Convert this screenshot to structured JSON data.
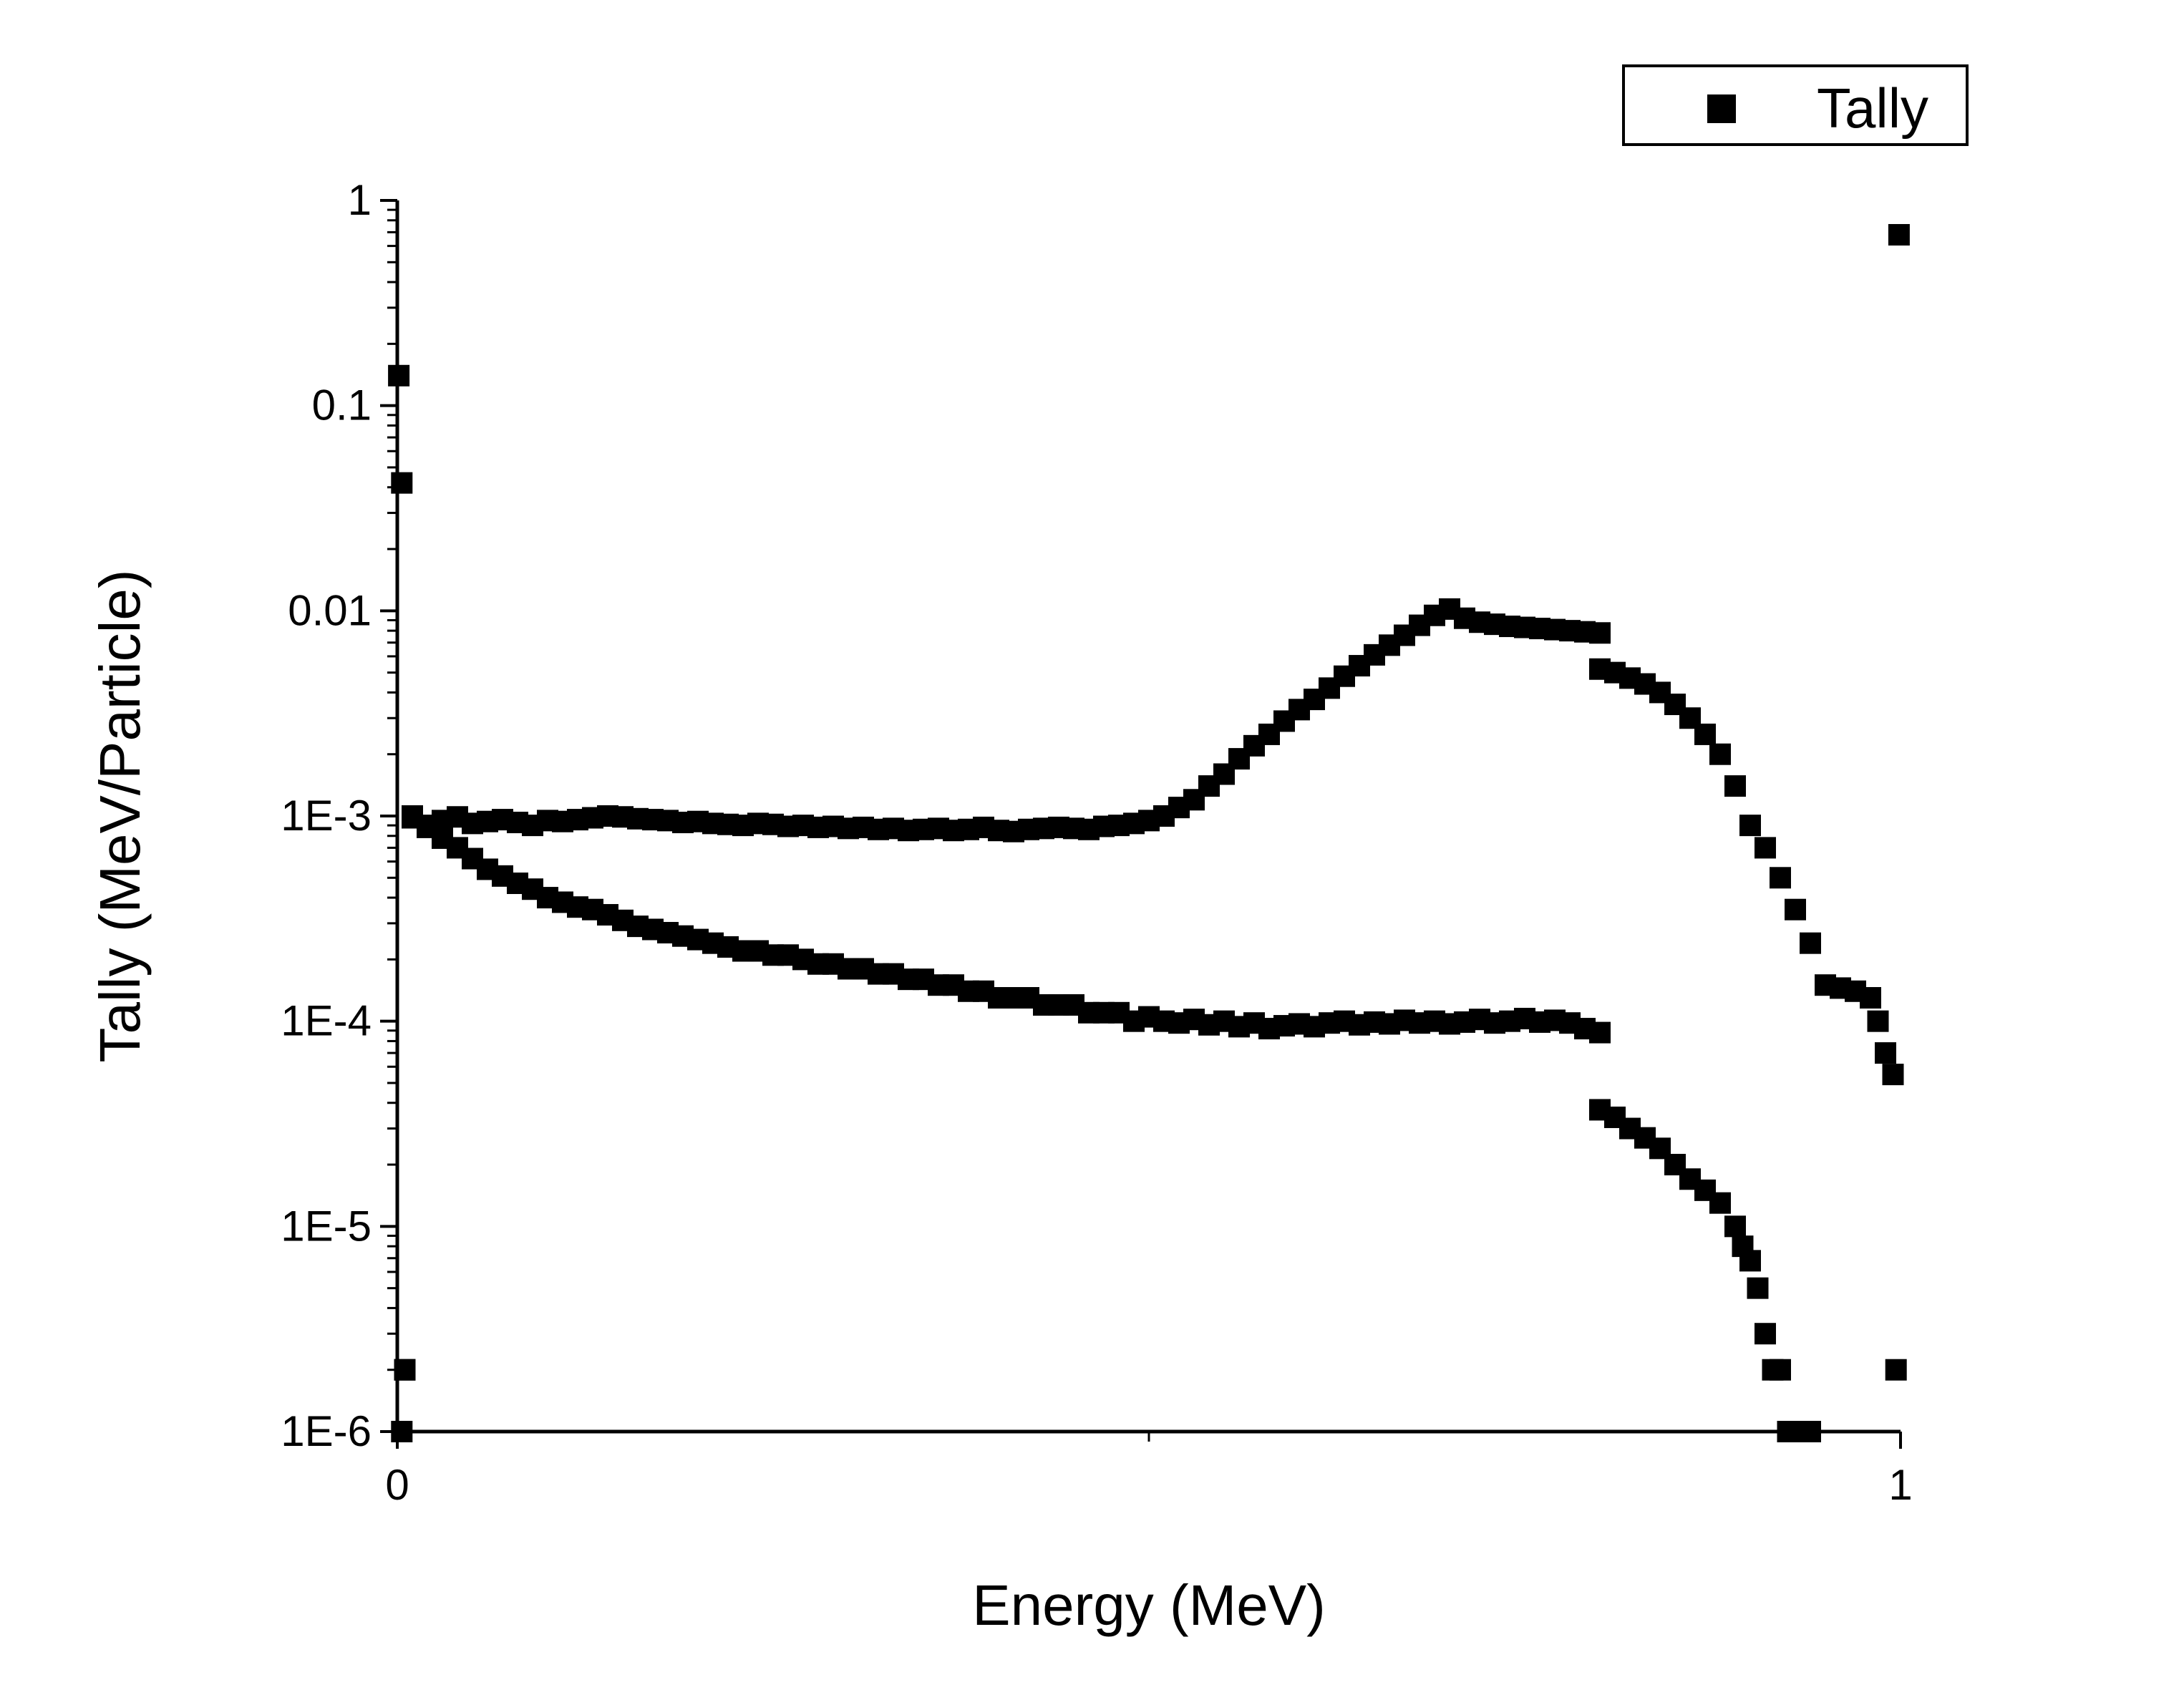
{
  "chart_data": {
    "type": "scatter",
    "title": "",
    "xlabel": "Energy (MeV)",
    "ylabel": "Tally (MeV/Particle)",
    "xlim": [
      0,
      1
    ],
    "ylim": [
      1e-06,
      1
    ],
    "yscale": "log",
    "grid": false,
    "legend": "top-right",
    "marker_color": "#000000",
    "x_ticks": [
      {
        "value": 0,
        "label": "0"
      },
      {
        "value": 1,
        "label": "1"
      }
    ],
    "y_ticks": [
      {
        "value": 1,
        "label": "1"
      },
      {
        "value": 0.1,
        "label": "0.1"
      },
      {
        "value": 0.01,
        "label": "0.01"
      },
      {
        "value": 0.001,
        "label": "1E-3"
      },
      {
        "value": 0.0001,
        "label": "1E-4"
      },
      {
        "value": 1e-05,
        "label": "1E-5"
      },
      {
        "value": 1e-06,
        "label": "1E-6"
      }
    ],
    "series": [
      {
        "name": "Tally",
        "marker": "square",
        "x": [
          0.001,
          0.003,
          0.005,
          0.01,
          0.02,
          0.03,
          0.04,
          0.05,
          0.06,
          0.07,
          0.08,
          0.09,
          0.1,
          0.11,
          0.12,
          0.13,
          0.14,
          0.15,
          0.16,
          0.17,
          0.18,
          0.19,
          0.2,
          0.21,
          0.22,
          0.23,
          0.24,
          0.25,
          0.26,
          0.27,
          0.28,
          0.29,
          0.3,
          0.31,
          0.32,
          0.33,
          0.34,
          0.35,
          0.36,
          0.37,
          0.38,
          0.39,
          0.4,
          0.41,
          0.42,
          0.43,
          0.44,
          0.45,
          0.46,
          0.47,
          0.48,
          0.49,
          0.5,
          0.51,
          0.52,
          0.53,
          0.54,
          0.55,
          0.56,
          0.57,
          0.58,
          0.59,
          0.6,
          0.61,
          0.62,
          0.63,
          0.64,
          0.65,
          0.66,
          0.67,
          0.68,
          0.69,
          0.7,
          0.71,
          0.72,
          0.73,
          0.74,
          0.75,
          0.76,
          0.77,
          0.78,
          0.79,
          0.8,
          0.01,
          0.02,
          0.03,
          0.04,
          0.05,
          0.06,
          0.07,
          0.08,
          0.09,
          0.1,
          0.11,
          0.12,
          0.13,
          0.14,
          0.15,
          0.16,
          0.17,
          0.18,
          0.19,
          0.2,
          0.21,
          0.22,
          0.23,
          0.24,
          0.25,
          0.26,
          0.27,
          0.28,
          0.29,
          0.3,
          0.31,
          0.32,
          0.33,
          0.34,
          0.35,
          0.36,
          0.37,
          0.38,
          0.39,
          0.4,
          0.41,
          0.42,
          0.43,
          0.44,
          0.45,
          0.46,
          0.47,
          0.48,
          0.49,
          0.5,
          0.51,
          0.52,
          0.53,
          0.54,
          0.55,
          0.56,
          0.57,
          0.58,
          0.59,
          0.6,
          0.61,
          0.62,
          0.63,
          0.64,
          0.65,
          0.66,
          0.67,
          0.68,
          0.69,
          0.7,
          0.71,
          0.72,
          0.73,
          0.74,
          0.75,
          0.76,
          0.77,
          0.78,
          0.79,
          0.8,
          0.8,
          0.81,
          0.82,
          0.83,
          0.84,
          0.85,
          0.86,
          0.87,
          0.88,
          0.89,
          0.9,
          0.91,
          0.92,
          0.93,
          0.94,
          0.95,
          0.96,
          0.97,
          0.98,
          0.985,
          0.99,
          0.995,
          0.8,
          0.81,
          0.82,
          0.83,
          0.84,
          0.85,
          0.86,
          0.87,
          0.88,
          0.89,
          0.895,
          0.9,
          0.905,
          0.91,
          0.915,
          0.92,
          0.925,
          0.93,
          0.935,
          0.94,
          0.003,
          0.005,
          0.997,
          0.999
        ],
        "y": [
          0.14,
          0.042,
          2e-06,
          0.00098,
          0.0009,
          0.00095,
          0.00099,
          0.00092,
          0.00094,
          0.00096,
          0.00093,
          0.0009,
          0.00095,
          0.00094,
          0.00096,
          0.00098,
          0.001,
          0.00099,
          0.00097,
          0.00096,
          0.00095,
          0.00093,
          0.00094,
          0.00092,
          0.00091,
          0.0009,
          0.00092,
          0.00091,
          0.00089,
          0.0009,
          0.00088,
          0.00089,
          0.00087,
          0.00088,
          0.00086,
          0.00087,
          0.00085,
          0.00086,
          0.00087,
          0.00085,
          0.00086,
          0.00088,
          0.00085,
          0.00084,
          0.00086,
          0.00087,
          0.00088,
          0.00087,
          0.00086,
          0.00089,
          0.0009,
          0.00092,
          0.00095,
          0.001,
          0.0011,
          0.0012,
          0.0014,
          0.0016,
          0.0019,
          0.0022,
          0.0025,
          0.0029,
          0.0033,
          0.0037,
          0.0042,
          0.0048,
          0.0054,
          0.0061,
          0.0068,
          0.0076,
          0.0085,
          0.0095,
          0.0102,
          0.0092,
          0.0088,
          0.0086,
          0.0084,
          0.0083,
          0.0082,
          0.0081,
          0.008,
          0.0079,
          0.0078,
          0.001,
          0.00088,
          0.00078,
          0.0007,
          0.00062,
          0.00055,
          0.00051,
          0.00047,
          0.00044,
          0.0004,
          0.00038,
          0.00036,
          0.00035,
          0.00033,
          0.00031,
          0.00029,
          0.00028,
          0.00027,
          0.00026,
          0.00025,
          0.00024,
          0.00023,
          0.00022,
          0.00022,
          0.00021,
          0.00021,
          0.0002,
          0.00019,
          0.00019,
          0.00018,
          0.00018,
          0.00017,
          0.00017,
          0.00016,
          0.00016,
          0.00015,
          0.00015,
          0.00014,
          0.00014,
          0.00013,
          0.00013,
          0.00013,
          0.00012,
          0.00012,
          0.00012,
          0.00011,
          0.00011,
          0.00011,
          0.0001,
          0.000105,
          0.0001,
          9.8e-05,
          0.000102,
          9.6e-05,
          0.0001,
          9.4e-05,
          9.8e-05,
          9.2e-05,
          9.5e-05,
          9.7e-05,
          9.4e-05,
          9.8e-05,
          0.0001,
          9.6e-05,
          9.9e-05,
          9.7e-05,
          0.000101,
          9.8e-05,
          0.0001,
          9.7e-05,
          9.9e-05,
          0.000102,
          9.8e-05,
          0.0001,
          0.000103,
          9.9e-05,
          0.000101,
          9.8e-05,
          9.2e-05,
          8.8e-05,
          0.0052,
          0.005,
          0.0047,
          0.0044,
          0.004,
          0.0035,
          0.003,
          0.0025,
          0.002,
          0.0014,
          0.0009,
          0.0007,
          0.0005,
          0.00035,
          0.00024,
          0.00015,
          0.000145,
          0.00014,
          0.00013,
          0.0001,
          7e-05,
          5.5e-05,
          3.7e-05,
          3.4e-05,
          3e-05,
          2.7e-05,
          2.4e-05,
          2e-05,
          1.7e-05,
          1.5e-05,
          1.3e-05,
          1e-05,
          8e-06,
          6.8e-06,
          5e-06,
          3e-06,
          2e-06,
          2e-06,
          1e-06,
          1e-06,
          1e-06,
          1e-06,
          1e-06,
          2e-06,
          2e-06,
          0.68
        ]
      }
    ]
  }
}
